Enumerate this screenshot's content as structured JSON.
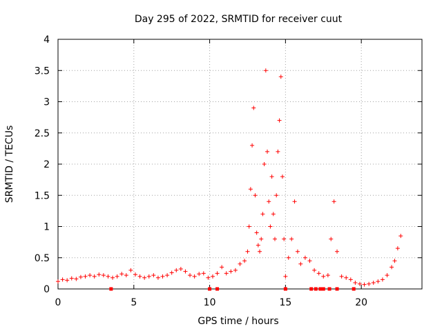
{
  "chart_data": {
    "type": "scatter",
    "title": "Day 295 of 2022, SRMTID for receiver cuut",
    "xlabel": "GPS time / hours",
    "ylabel": "SRMTID / TECUs",
    "xlim": [
      0,
      24
    ],
    "ylim": [
      0,
      4
    ],
    "xticks": [
      0,
      5,
      10,
      15,
      20
    ],
    "xtick_labels": [
      "0",
      "5",
      "10",
      "15",
      "20"
    ],
    "yticks": [
      0,
      0.5,
      1,
      1.5,
      2,
      2.5,
      3,
      3.5,
      4
    ],
    "ytick_labels": [
      "0",
      "0.5",
      "1",
      "1.5",
      "2",
      "2.5",
      "3",
      "3.5",
      "4"
    ],
    "grid": true,
    "marker": "+",
    "color": "#ff0000",
    "series": [
      {
        "name": "SRMTID",
        "x": [
          0.0,
          0.3,
          0.6,
          0.9,
          1.2,
          1.5,
          1.8,
          2.1,
          2.4,
          2.7,
          3.0,
          3.3,
          3.6,
          3.9,
          4.2,
          4.5,
          4.8,
          5.1,
          5.4,
          5.7,
          6.0,
          6.3,
          6.6,
          6.9,
          7.2,
          7.5,
          7.8,
          8.1,
          8.4,
          8.7,
          9.0,
          9.3,
          9.6,
          9.9,
          10.2,
          10.5,
          10.8,
          11.1,
          11.4,
          11.7,
          12.0,
          12.3,
          12.5,
          12.6,
          12.7,
          12.8,
          12.9,
          13.0,
          13.1,
          13.2,
          13.3,
          13.4,
          13.5,
          13.6,
          13.7,
          13.8,
          13.9,
          14.0,
          14.1,
          14.2,
          14.3,
          14.4,
          14.5,
          14.6,
          14.7,
          14.8,
          14.9,
          15.0,
          15.2,
          15.4,
          15.6,
          15.8,
          16.0,
          16.3,
          16.6,
          16.9,
          17.2,
          17.5,
          17.8,
          18.0,
          18.2,
          18.4,
          18.7,
          19.0,
          19.3,
          19.6,
          19.9,
          20.2,
          20.5,
          20.8,
          21.1,
          21.4,
          21.7,
          22.0,
          22.2,
          22.4,
          22.6
        ],
        "y": [
          0.12,
          0.15,
          0.14,
          0.17,
          0.16,
          0.19,
          0.2,
          0.22,
          0.2,
          0.23,
          0.22,
          0.2,
          0.18,
          0.2,
          0.24,
          0.22,
          0.3,
          0.23,
          0.2,
          0.18,
          0.2,
          0.22,
          0.18,
          0.2,
          0.22,
          0.26,
          0.3,
          0.32,
          0.28,
          0.22,
          0.2,
          0.24,
          0.25,
          0.18,
          0.2,
          0.25,
          0.35,
          0.25,
          0.28,
          0.3,
          0.4,
          0.45,
          0.6,
          1.0,
          1.6,
          2.3,
          2.9,
          1.5,
          0.9,
          0.7,
          0.6,
          0.8,
          1.2,
          2.0,
          3.5,
          2.2,
          1.4,
          1.0,
          1.8,
          1.2,
          0.8,
          1.5,
          2.2,
          2.7,
          3.4,
          1.8,
          0.8,
          0.2,
          0.5,
          0.8,
          1.4,
          0.6,
          0.4,
          0.5,
          0.45,
          0.3,
          0.25,
          0.2,
          0.22,
          0.8,
          1.4,
          0.6,
          0.2,
          0.18,
          0.15,
          0.1,
          0.08,
          0.07,
          0.08,
          0.1,
          0.12,
          0.15,
          0.22,
          0.35,
          0.45,
          0.65,
          0.85
        ]
      }
    ],
    "zero_points_x": [
      3.5,
      10.0,
      10.5,
      15.0,
      16.7,
      17.0,
      17.3,
      17.5,
      17.9,
      18.4,
      19.5
    ]
  }
}
